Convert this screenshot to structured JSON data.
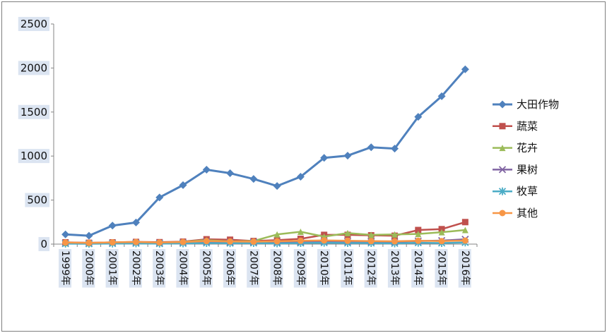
{
  "chart": {
    "background": "#ffffff",
    "border_color": "#7f7f7f",
    "axis_color": "#868686",
    "label_highlight": "#dbe4f1",
    "text_color": "#111111",
    "legend_text_color": "#111111",
    "ytick_labels": [
      "0",
      "500",
      "1000",
      "1500",
      "2000",
      "2500"
    ]
  },
  "chart_data": {
    "type": "line",
    "title": "",
    "xlabel": "",
    "ylabel": "",
    "ylim": [
      0,
      2500
    ],
    "ytick_step": 500,
    "grid": false,
    "legend_position": "right",
    "categories": [
      "1999年",
      "2000年",
      "2001年",
      "2002年",
      "2003年",
      "2004年",
      "2005年",
      "2006年",
      "2007年",
      "2008年",
      "2009年",
      "2010年",
      "2011年",
      "2012年",
      "2013年",
      "2014年",
      "2015年",
      "2016年"
    ],
    "series": [
      {
        "name": "大田作物",
        "color": "#4F81BD",
        "marker": "diamond",
        "values": [
          110,
          95,
          210,
          245,
          530,
          670,
          845,
          805,
          740,
          660,
          765,
          980,
          1005,
          1100,
          1085,
          1445,
          1680,
          1985
        ]
      },
      {
        "name": "蔬菜",
        "color": "#C0504D",
        "marker": "square",
        "values": [
          20,
          15,
          20,
          25,
          22,
          28,
          55,
          50,
          35,
          45,
          60,
          105,
          105,
          100,
          95,
          160,
          170,
          250
        ]
      },
      {
        "name": "花卉",
        "color": "#9BBB59",
        "marker": "triangle",
        "values": [
          12,
          10,
          18,
          22,
          15,
          25,
          45,
          30,
          35,
          110,
          140,
          85,
          125,
          105,
          110,
          115,
          135,
          160
        ]
      },
      {
        "name": "果树",
        "color": "#8064A2",
        "marker": "x",
        "values": [
          8,
          6,
          10,
          14,
          10,
          15,
          28,
          20,
          22,
          18,
          22,
          28,
          30,
          28,
          25,
          35,
          40,
          55
        ]
      },
      {
        "name": "牧草",
        "color": "#4BACC6",
        "marker": "asterisk",
        "values": [
          5,
          4,
          6,
          8,
          5,
          8,
          12,
          10,
          12,
          8,
          12,
          15,
          12,
          12,
          8,
          15,
          12,
          18
        ]
      },
      {
        "name": "其他",
        "color": "#F79646",
        "marker": "circle",
        "values": [
          18,
          14,
          20,
          24,
          18,
          24,
          35,
          30,
          28,
          32,
          38,
          42,
          38,
          34,
          32,
          38,
          34,
          40
        ]
      }
    ]
  }
}
